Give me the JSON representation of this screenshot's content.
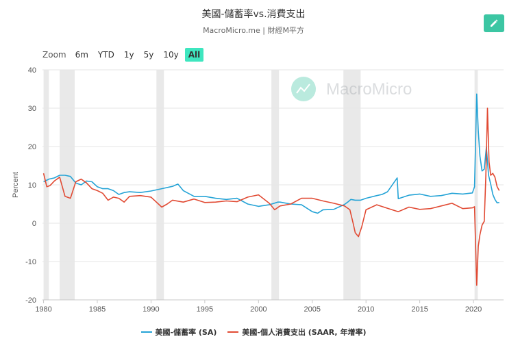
{
  "colors": {
    "series_a": "#24a3d6",
    "series_b": "#e14a33",
    "accent": "#3cc6a3",
    "recession": "#e9e9e9",
    "grid": "#e6e6e6"
  },
  "toolbar": {
    "zoom_label": "Zoom",
    "ranges": [
      "6m",
      "YTD",
      "1y",
      "5y",
      "10y",
      "All"
    ],
    "active_range": "All",
    "edit_icon": "pencil-icon"
  },
  "watermark": {
    "text": "MacroMicro"
  },
  "chart_data": {
    "type": "line",
    "title": "美國-儲蓄率vs.消費支出",
    "subtitle": "MacroMicro.me | 財經M平方",
    "ylabel": "Percent",
    "xlabel": "",
    "xlim": [
      1979.9,
      2022.8
    ],
    "ylim": [
      -20,
      40
    ],
    "yticks": [
      -20,
      -10,
      0,
      10,
      20,
      30,
      40
    ],
    "xticks": [
      1980,
      1985,
      1990,
      1995,
      2000,
      2005,
      2010,
      2015,
      2020
    ],
    "recessions": [
      [
        1980.0,
        1980.5
      ],
      [
        1981.5,
        1982.9
      ],
      [
        1990.5,
        1991.2
      ],
      [
        2001.2,
        2001.9
      ],
      [
        2007.9,
        2009.5
      ],
      [
        2020.1,
        2020.4
      ]
    ],
    "series": [
      {
        "name": "美國-儲蓄率 (SA)",
        "x": [
          1980,
          1980.5,
          1981,
          1981.5,
          1982,
          1982.5,
          1983,
          1983.5,
          1984,
          1984.5,
          1985,
          1985.5,
          1986,
          1986.5,
          1987,
          1987.5,
          1988,
          1989,
          1990,
          1991,
          1992,
          1992.5,
          1993,
          1994,
          1995,
          1996,
          1997,
          1998,
          1999,
          2000,
          2001,
          2001.8,
          2002,
          2003,
          2004,
          2005,
          2005.5,
          2006,
          2007,
          2008,
          2008.3,
          2008.6,
          2009,
          2009.5,
          2010,
          2011,
          2011.5,
          2012,
          2012.9,
          2013,
          2014,
          2015,
          2016,
          2017,
          2018,
          2019,
          2019.9,
          2020.1,
          2020.3,
          2020.45,
          2020.6,
          2020.8,
          2021.0,
          2021.2,
          2021.4,
          2021.6,
          2021.8,
          2022.0,
          2022.2,
          2022.4
        ],
        "values": [
          10.8,
          11.5,
          11.8,
          12.5,
          12.5,
          12.2,
          10.5,
          10.0,
          11.0,
          10.8,
          9.5,
          9.0,
          9.0,
          8.5,
          7.5,
          8.0,
          8.2,
          8.0,
          8.4,
          9.0,
          9.6,
          10.2,
          8.5,
          7.0,
          7.0,
          6.5,
          6.2,
          6.5,
          5.0,
          4.4,
          4.8,
          5.5,
          5.5,
          5.0,
          4.8,
          3.0,
          2.6,
          3.5,
          3.6,
          4.9,
          5.5,
          6.2,
          6.0,
          6.0,
          6.5,
          7.2,
          7.5,
          8.2,
          11.8,
          6.4,
          7.3,
          7.6,
          7.0,
          7.2,
          7.8,
          7.6,
          7.9,
          9.5,
          33.7,
          24.0,
          17.5,
          13.6,
          14.1,
          19.8,
          12.6,
          10.2,
          7.5,
          6.2,
          5.3,
          5.4
        ]
      },
      {
        "name": "美國-個人消費支出 (SAAR, 年增率)",
        "x": [
          1980,
          1980.3,
          1980.6,
          1981,
          1981.5,
          1982,
          1982.5,
          1983,
          1983.5,
          1984,
          1984.5,
          1985,
          1985.5,
          1986,
          1986.5,
          1987,
          1987.5,
          1988,
          1989,
          1990,
          1991,
          1991.5,
          1992,
          1993,
          1994,
          1995,
          1996,
          1997,
          1998,
          1999,
          2000,
          2001,
          2001.5,
          2002,
          2003,
          2004,
          2005,
          2006,
          2007,
          2008,
          2008.5,
          2008.8,
          2009.0,
          2009.3,
          2009.6,
          2010,
          2011,
          2012,
          2013,
          2014,
          2015,
          2016,
          2017,
          2018,
          2019,
          2019.9,
          2020.1,
          2020.3,
          2020.45,
          2020.6,
          2020.8,
          2021.0,
          2021.15,
          2021.3,
          2021.45,
          2021.6,
          2021.8,
          2022.0,
          2022.2,
          2022.4
        ],
        "values": [
          13.0,
          9.5,
          9.8,
          11.0,
          12.0,
          7.0,
          6.5,
          10.8,
          11.5,
          10.5,
          9.0,
          8.5,
          7.8,
          6.0,
          6.8,
          6.5,
          5.5,
          7.0,
          7.2,
          6.8,
          4.2,
          5.0,
          6.0,
          5.5,
          6.3,
          5.4,
          5.5,
          5.8,
          5.6,
          6.8,
          7.4,
          5.2,
          3.5,
          4.5,
          5.0,
          6.5,
          6.5,
          5.8,
          5.2,
          4.5,
          3.5,
          0.0,
          -2.5,
          -3.5,
          -1.0,
          3.5,
          4.8,
          3.9,
          3.0,
          4.2,
          3.6,
          3.8,
          4.5,
          5.2,
          3.8,
          4.0,
          4.3,
          -16.2,
          -6.0,
          -3.0,
          -0.5,
          0.5,
          12.2,
          30.0,
          16.0,
          12.5,
          13.0,
          12.0,
          9.5,
          8.5
        ]
      }
    ]
  }
}
